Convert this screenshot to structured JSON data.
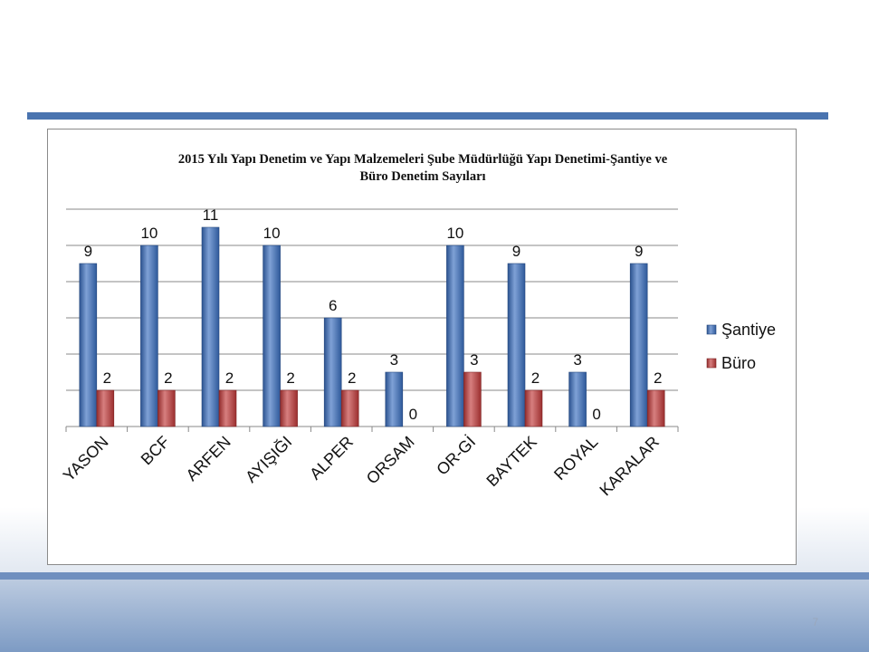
{
  "slide": {
    "page_number": "7"
  },
  "chart_data": {
    "type": "bar",
    "title_lines": [
      "2015  Yılı Yapı Denetim ve Yapı Malzemeleri Şube Müdürlüğü   Yapı Denetimi-Şantiye ve",
      "Büro Denetim Sayıları"
    ],
    "categories": [
      "YASON",
      "BCF",
      "ARFEN",
      "AYIŞIĞI",
      "ALPER",
      "ORSAM",
      "OR-Gİ",
      "BAYTEK",
      "ROYAL",
      "KARALAR"
    ],
    "series": [
      {
        "name": "Şantiye",
        "color": "#3a6fc0",
        "values": [
          9,
          10,
          11,
          10,
          6,
          3,
          10,
          9,
          3,
          9
        ]
      },
      {
        "name": "Büro",
        "color": "#c23a3a",
        "values": [
          2,
          2,
          2,
          2,
          2,
          0,
          3,
          2,
          0,
          2
        ]
      }
    ],
    "ylim": [
      0,
      12
    ],
    "grid": true,
    "legend": "right"
  }
}
